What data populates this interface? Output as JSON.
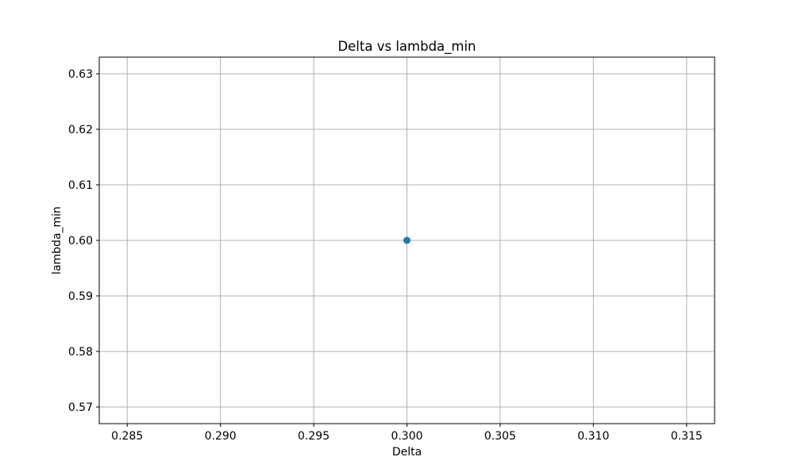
{
  "chart_data": {
    "type": "scatter",
    "title": "Delta vs lambda_min",
    "xlabel": "Delta",
    "ylabel": "lambda_min",
    "xlim": [
      0.2835,
      0.3165
    ],
    "ylim": [
      0.567,
      0.633
    ],
    "x_ticks": [
      0.285,
      0.29,
      0.295,
      0.3,
      0.305,
      0.31,
      0.315
    ],
    "x_tick_labels": [
      "0.285",
      "0.290",
      "0.295",
      "0.300",
      "0.305",
      "0.310",
      "0.315"
    ],
    "y_ticks": [
      0.57,
      0.58,
      0.59,
      0.6,
      0.61,
      0.62,
      0.63
    ],
    "y_tick_labels": [
      "0.57",
      "0.58",
      "0.59",
      "0.60",
      "0.61",
      "0.62",
      "0.63"
    ],
    "grid": true,
    "series": [
      {
        "x": [
          0.3
        ],
        "y": [
          0.6
        ],
        "color": "#1f77b4"
      }
    ]
  }
}
